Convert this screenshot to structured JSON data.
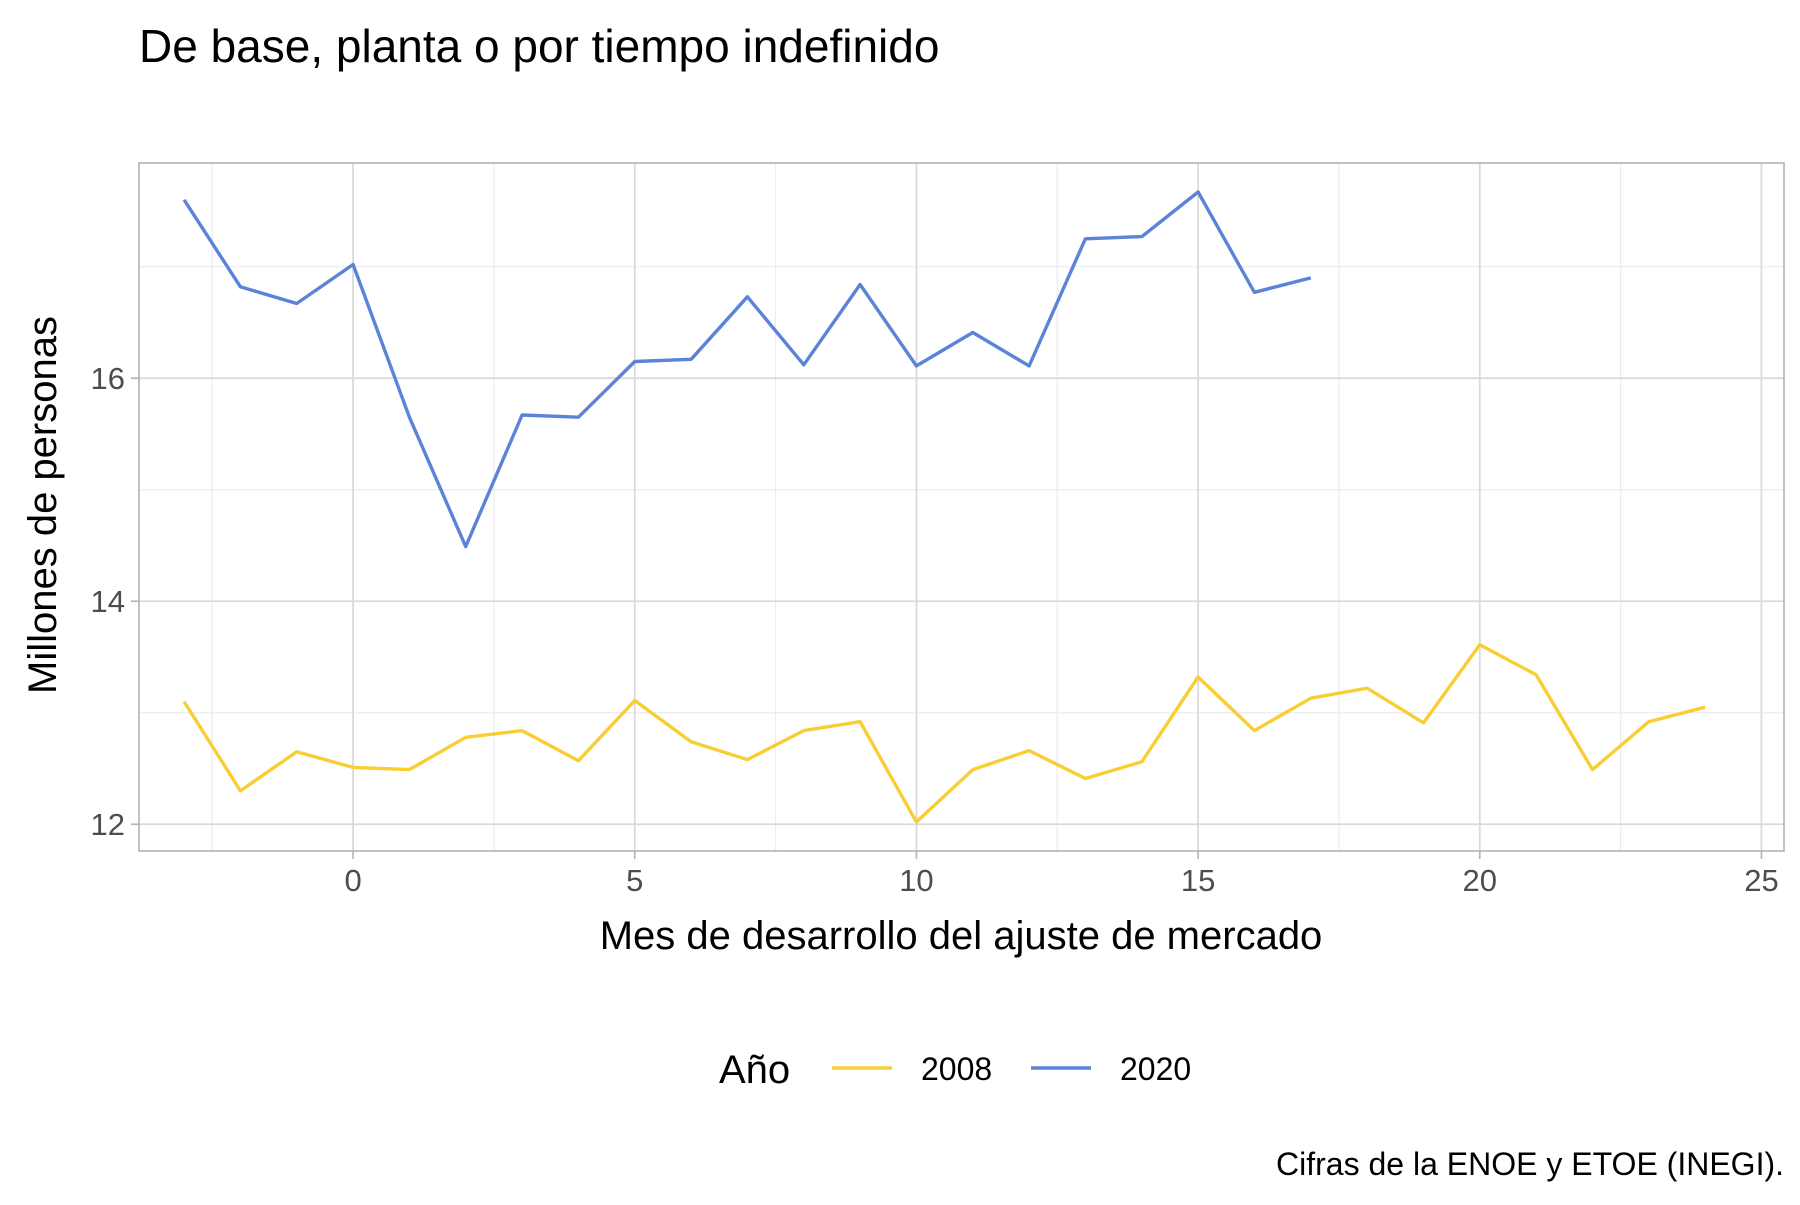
{
  "chart_data": {
    "type": "line",
    "title": "De base, planta o por tiempo indefinido",
    "xlabel": "Mes de desarrollo del ajuste de mercado",
    "ylabel": "Millones de personas",
    "caption": "Cifras de la ENOE y ETOE (INEGI).",
    "legend_title": "Año",
    "legend_position": "bottom",
    "grid": true,
    "xlim": [
      -3.8,
      25.4
    ],
    "ylim": [
      11.76,
      17.93
    ],
    "x_ticks": [
      0,
      5,
      10,
      15,
      20,
      25
    ],
    "y_ticks": [
      12,
      14,
      16
    ],
    "series": [
      {
        "name": "2008",
        "color": "#F9CE35",
        "x": [
          -3,
          -2,
          -1,
          0,
          1,
          2,
          3,
          4,
          5,
          6,
          7,
          8,
          9,
          10,
          11,
          12,
          13,
          14,
          15,
          16,
          17,
          18,
          19,
          20,
          21,
          22,
          23,
          24
        ],
        "y": [
          13.1,
          12.3,
          12.65,
          12.51,
          12.49,
          12.78,
          12.84,
          12.57,
          13.11,
          12.74,
          12.58,
          12.84,
          12.92,
          12.02,
          12.49,
          12.66,
          12.41,
          12.56,
          13.32,
          12.84,
          13.13,
          13.22,
          12.91,
          13.61,
          13.34,
          12.49,
          12.92,
          13.05
        ]
      },
      {
        "name": "2020",
        "color": "#5B84D9",
        "x": [
          -3,
          -2,
          -1,
          0,
          1,
          2,
          3,
          4,
          5,
          6,
          7,
          8,
          9,
          10,
          11,
          12,
          13,
          14,
          15,
          16,
          17
        ],
        "y": [
          17.6,
          16.82,
          16.67,
          17.02,
          15.65,
          14.49,
          15.67,
          15.65,
          16.15,
          16.17,
          16.73,
          16.12,
          16.84,
          16.11,
          16.41,
          16.11,
          17.25,
          17.27,
          17.67,
          16.77,
          16.9
        ]
      }
    ]
  }
}
